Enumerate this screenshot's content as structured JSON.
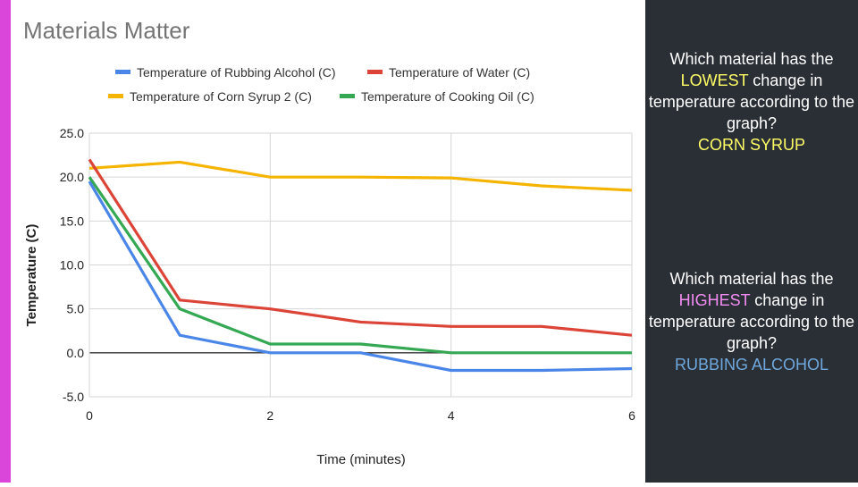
{
  "chart_data": {
    "type": "line",
    "title": "Materials Matter",
    "xlabel": "Time (minutes)",
    "ylabel": "Temperature (C)",
    "x": [
      0,
      1,
      2,
      3,
      4,
      5,
      6
    ],
    "xticks": [
      "0",
      "2",
      "4",
      "6"
    ],
    "yticks": [
      "25.0",
      "20.0",
      "15.0",
      "10.0",
      "5.0",
      "0.0",
      "-5.0"
    ],
    "xlim": [
      0,
      6
    ],
    "ylim": [
      -5,
      25
    ],
    "grid": true,
    "legend_position": "top",
    "series": [
      {
        "name": "Temperature of Rubbing Alcohol (C)",
        "color": "#4a86e8",
        "values": [
          19.5,
          2.0,
          0.0,
          0.0,
          -2.0,
          -2.0,
          -1.8
        ]
      },
      {
        "name": "Temperature of Water (C)",
        "color": "#db4437",
        "values": [
          22.0,
          6.0,
          5.0,
          3.5,
          3.0,
          3.0,
          2.0
        ]
      },
      {
        "name": "Temperature of Corn Syrup 2 (C)",
        "color": "#f4b400",
        "values": [
          21.0,
          21.7,
          20.0,
          20.0,
          19.9,
          19.0,
          18.5
        ]
      },
      {
        "name": "Temperature of Cooking Oil (C)",
        "color": "#34a853",
        "values": [
          20.0,
          5.0,
          1.0,
          1.0,
          0.0,
          0.0,
          0.0
        ]
      }
    ]
  },
  "side": {
    "q1": {
      "pre": "Which material has the ",
      "highlight": "LOWEST",
      "post": " change in temperature according to the graph?",
      "answer": "CORN SYRUP",
      "highlight_color": "#ffff66",
      "answer_color": "#ffff66"
    },
    "q2": {
      "pre": "Which material has the ",
      "highlight": "HIGHEST",
      "post": " change in temperature according to the graph?",
      "answer": "RUBBING ALCOHOL",
      "highlight_color": "#f28cf2",
      "answer_color": "#6fa8dc"
    }
  },
  "colors": {
    "accent_bar": "#d946d9",
    "side_panel": "#2a2f36"
  }
}
